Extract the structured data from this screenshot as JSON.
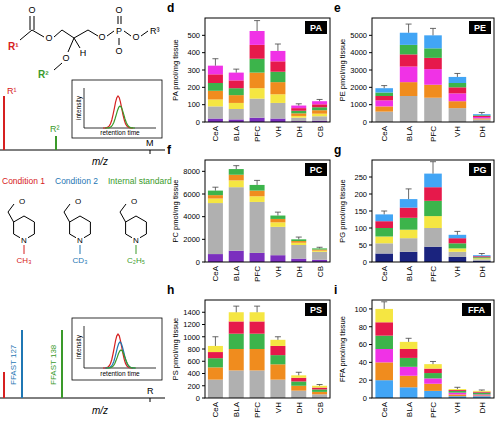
{
  "diagram": {
    "structure": {
      "o": "O",
      "p": "P",
      "h": "H",
      "r1": "R¹",
      "r2": "R²",
      "r3": "R³"
    },
    "spectrum_top": {
      "peak_labels": [
        "R¹",
        "R²"
      ],
      "x_label": "m/z",
      "mass_label": "M",
      "inset_y": "intensity",
      "inset_x": "retention time"
    },
    "conditions": [
      "Condition 1",
      "Condition 2",
      "Internal standard"
    ],
    "ring_atom": "N",
    "substituents": [
      "CH₃",
      "CD₃",
      "C₂H₅"
    ],
    "spectrum_bottom": {
      "peak_labels": [
        "FFAST 127",
        "FFAST 138"
      ],
      "x_label": "m/z",
      "mass_label": "R",
      "inset_y": "intensity",
      "inset_x": "retention time"
    }
  },
  "chart_data": [
    {
      "type": "bar",
      "stacked": true,
      "grid": false,
      "panel_label": "d",
      "title": "PA",
      "y_label": "PA pmol/mg tissue",
      "categories": [
        "CeA",
        "BLA",
        "PFC",
        "VH",
        "DH",
        "CB"
      ],
      "ylim": [
        0,
        600
      ],
      "yticks": [
        0,
        100,
        200,
        300,
        400,
        500
      ],
      "series": [
        {
          "color": "#7b2fbe",
          "values": [
            20,
            15,
            25,
            20,
            5,
            8
          ]
        },
        {
          "color": "#b0b0b0",
          "values": [
            70,
            60,
            110,
            90,
            20,
            25
          ]
        },
        {
          "color": "#f5e642",
          "values": [
            40,
            35,
            60,
            50,
            10,
            15
          ]
        },
        {
          "color": "#f08c1e",
          "values": [
            50,
            45,
            90,
            70,
            15,
            20
          ]
        },
        {
          "color": "#3cb44b",
          "values": [
            45,
            40,
            80,
            60,
            15,
            17
          ]
        },
        {
          "color": "#e6194b",
          "values": [
            50,
            45,
            80,
            60,
            15,
            17
          ]
        },
        {
          "color": "#f032e6",
          "values": [
            50,
            45,
            80,
            60,
            15,
            18
          ]
        }
      ],
      "errors": [
        40,
        20,
        60,
        40,
        10,
        10
      ]
    },
    {
      "type": "bar",
      "stacked": true,
      "grid": false,
      "panel_label": "e",
      "title": "PE",
      "y_label": "PE pmol/mg tissue",
      "categories": [
        "CeA",
        "BLA",
        "PFC",
        "VH",
        "DH"
      ],
      "ylim": [
        0,
        6000
      ],
      "yticks": [
        0,
        1000,
        2000,
        3000,
        4000,
        5000
      ],
      "series": [
        {
          "color": "#b0b0b0",
          "values": [
            600,
            1500,
            1400,
            800,
            150
          ]
        },
        {
          "color": "#f08c1e",
          "values": [
            300,
            800,
            750,
            400,
            60
          ]
        },
        {
          "color": "#f032e6",
          "values": [
            350,
            900,
            900,
            450,
            80
          ]
        },
        {
          "color": "#e6194b",
          "values": [
            250,
            700,
            650,
            350,
            60
          ]
        },
        {
          "color": "#3cb44b",
          "values": [
            200,
            550,
            550,
            250,
            40
          ]
        },
        {
          "color": "#42a5f5",
          "values": [
            250,
            700,
            750,
            350,
            60
          ]
        }
      ],
      "errors": [
        150,
        500,
        400,
        200,
        100
      ]
    },
    {
      "type": "bar",
      "stacked": true,
      "grid": false,
      "panel_label": "f",
      "title": "PC",
      "y_label": "PC pmol/mg tissue",
      "categories": [
        "CeA",
        "BLA",
        "PFC",
        "VH",
        "DH",
        "CB"
      ],
      "ylim": [
        0,
        9000
      ],
      "yticks": [
        0,
        2000,
        4000,
        6000,
        8000
      ],
      "series": [
        {
          "color": "#7b2fbe",
          "values": [
            700,
            1000,
            800,
            600,
            300,
            200
          ]
        },
        {
          "color": "#b0b0b0",
          "values": [
            4500,
            5600,
            4500,
            2500,
            1200,
            700
          ]
        },
        {
          "color": "#f5e642",
          "values": [
            400,
            600,
            500,
            400,
            200,
            100
          ]
        },
        {
          "color": "#f08c1e",
          "values": [
            300,
            500,
            500,
            300,
            150,
            100
          ]
        },
        {
          "color": "#3cb44b",
          "values": [
            400,
            500,
            500,
            300,
            150,
            100
          ]
        }
      ],
      "errors": [
        300,
        300,
        400,
        300,
        200,
        100
      ]
    },
    {
      "type": "bar",
      "stacked": true,
      "grid": false,
      "panel_label": "g",
      "title": "PG",
      "y_label": "PG pmol/mg tissue",
      "categories": [
        "CeA",
        "BLA",
        "PFC",
        "VH",
        "DH"
      ],
      "ylim": [
        0,
        300
      ],
      "yticks": [
        0,
        50,
        100,
        150,
        200,
        250
      ],
      "series": [
        {
          "color": "#1a237e",
          "values": [
            25,
            30,
            45,
            15,
            4
          ]
        },
        {
          "color": "#b0b0b0",
          "values": [
            30,
            40,
            55,
            15,
            4
          ]
        },
        {
          "color": "#f5e642",
          "values": [
            20,
            25,
            35,
            10,
            3
          ]
        },
        {
          "color": "#3cb44b",
          "values": [
            25,
            35,
            45,
            15,
            3
          ]
        },
        {
          "color": "#e6194b",
          "values": [
            20,
            30,
            40,
            15,
            3
          ]
        },
        {
          "color": "#42a5f5",
          "values": [
            20,
            25,
            40,
            10,
            3
          ]
        }
      ],
      "errors": [
        10,
        30,
        35,
        10,
        5
      ]
    },
    {
      "type": "bar",
      "stacked": true,
      "grid": false,
      "panel_label": "h",
      "title": "PS",
      "y_label": "PS pmol/mg tissue",
      "categories": [
        "CeA",
        "BLA",
        "PFC",
        "VH",
        "DH",
        "CB"
      ],
      "ylim": [
        0,
        1600
      ],
      "yticks": [
        0,
        200,
        400,
        600,
        800,
        1000,
        1200,
        1400
      ],
      "series": [
        {
          "color": "#b0b0b0",
          "values": [
            300,
            450,
            450,
            300,
            120,
            60
          ]
        },
        {
          "color": "#f08c1e",
          "values": [
            200,
            350,
            350,
            250,
            80,
            40
          ]
        },
        {
          "color": "#3cb44b",
          "values": [
            150,
            250,
            250,
            150,
            70,
            40
          ]
        },
        {
          "color": "#e6194b",
          "values": [
            100,
            200,
            200,
            150,
            60,
            30
          ]
        },
        {
          "color": "#f5e642",
          "values": [
            100,
            150,
            150,
            100,
            40,
            30
          ]
        }
      ],
      "errors": [
        150,
        100,
        100,
        50,
        50,
        20
      ]
    },
    {
      "type": "bar",
      "stacked": true,
      "grid": false,
      "panel_label": "i",
      "title": "FFA",
      "y_label": "FFA pmol/mg tissue",
      "categories": [
        "CeA",
        "BLA",
        "PFC",
        "VH",
        "DH"
      ],
      "ylim": [
        0,
        110
      ],
      "yticks": [
        0,
        20,
        40,
        60,
        80,
        100
      ],
      "series": [
        {
          "color": "#42a5f5",
          "values": [
            20,
            12,
            8,
            2,
            2
          ]
        },
        {
          "color": "#f08c1e",
          "values": [
            20,
            13,
            8,
            2,
            1
          ]
        },
        {
          "color": "#f032e6",
          "values": [
            15,
            10,
            6,
            2,
            1
          ]
        },
        {
          "color": "#3cb44b",
          "values": [
            15,
            10,
            6,
            2,
            2
          ]
        },
        {
          "color": "#e6194b",
          "values": [
            15,
            10,
            5,
            1,
            1
          ]
        },
        {
          "color": "#f5e642",
          "values": [
            15,
            8,
            5,
            1,
            1
          ]
        }
      ],
      "errors": [
        8,
        4,
        3,
        2,
        1
      ]
    }
  ]
}
